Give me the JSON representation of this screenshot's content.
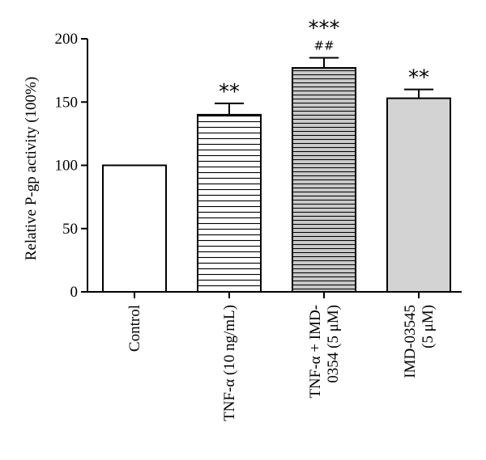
{
  "chart_data": {
    "type": "bar",
    "ylabel": "Relative P-gp activity (100%)",
    "ylim": [
      0,
      200
    ],
    "yticks": [
      0,
      50,
      100,
      150,
      200
    ],
    "categories": [
      {
        "lines": [
          "Control"
        ]
      },
      {
        "lines": [
          "TNF-α (10 ng/mL)"
        ]
      },
      {
        "lines": [
          "TNF-α + IMD-",
          "0354 (5 μM)"
        ]
      },
      {
        "lines": [
          "IMD-03545",
          "(5 μM)"
        ]
      }
    ],
    "values": [
      100,
      140,
      177,
      153
    ],
    "errors": [
      0,
      9,
      8,
      7
    ],
    "fills": [
      "white",
      "horizontal-lines",
      "gray-horizontal-lines",
      "light-gray"
    ],
    "colors": {
      "light_gray": "#d3d3d3",
      "line": "#000000"
    },
    "significance": [
      {
        "bar": 1,
        "top": "**",
        "second": ""
      },
      {
        "bar": 2,
        "top": "***",
        "second": "##"
      },
      {
        "bar": 3,
        "top": "**",
        "second": ""
      }
    ],
    "grid": false,
    "legend": "none"
  }
}
